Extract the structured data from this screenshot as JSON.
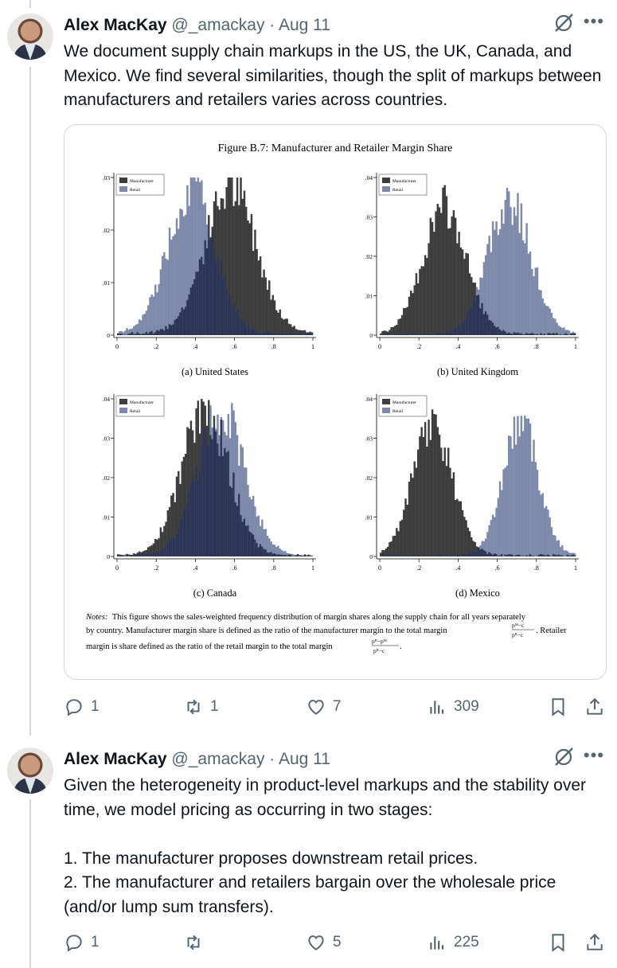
{
  "tweets": [
    {
      "name": "Alex MacKay",
      "handle": "@_amackay",
      "sep": "·",
      "date": "Aug 11",
      "text": "We document supply chain markups in the US, the UK, Canada, and Mexico. We find several similarities, though the split of markups between manufacturers and retailers varies across countries.",
      "replies": "1",
      "retweets": "1",
      "likes": "7",
      "views": "309"
    },
    {
      "name": "Alex MacKay",
      "handle": "@_amackay",
      "sep": "·",
      "date": "Aug 11",
      "text": "Given the heterogeneity in product-level markups and the stability over time, we model pricing as occurring in two stages:\n\n1. The manufacturer proposes downstream retail prices.\n2. The manufacturer and retailers bargain over the wholesale price (and/or lump sum transfers).",
      "replies": "1",
      "retweets": "",
      "likes": "5",
      "views": "225"
    }
  ],
  "icons": [
    "grok-icon",
    "more-icon",
    "reply-icon",
    "retweet-icon",
    "like-icon",
    "views-icon",
    "bookmark-icon",
    "share-icon"
  ],
  "colors": {
    "manufacturer": "#3d3d3d",
    "retail": "#7f8aab",
    "overlap": "#2c3453",
    "muted": "#536471"
  },
  "figure": {
    "title": "Figure B.7: Manufacturer and Retailer Margin Share",
    "notes_label": "Notes:",
    "notes_line1": "This figure shows the sales-weighted frequency distribution of margin shares along the supply chain for all years separately",
    "notes_line2a": "by country.  Manufacturer margin share is defined as the ratio of the manufacturer margin to the total margin",
    "notes_frac1_num": "pᴹ−c",
    "notes_frac1_den": "pᴿ−c",
    "notes_line2b": ".  Retailer",
    "notes_line3a": "margin is share defined as the ratio of the retail margin to the total margin",
    "notes_frac2_num": "pᴿ−pᴹ",
    "notes_frac2_den": "pᴿ−c",
    "notes_line3b": "."
  },
  "chart_data": [
    {
      "type": "bar",
      "title": "(a) United States",
      "legend": [
        "Manufacturer",
        "Retail"
      ],
      "legend_position": "top-left",
      "xlim": [
        0,
        1
      ],
      "ylim": [
        0,
        0.03
      ],
      "xticks": [
        "0",
        ".2",
        ".4",
        ".6",
        ".8",
        "1"
      ],
      "yticks": [
        "0",
        ".01",
        ".02",
        ".03"
      ],
      "series": [
        {
          "name": "Manufacturer",
          "distribution": "approx. normal",
          "peak_x": 0.58,
          "peak_y": 0.028,
          "sd": 0.13
        },
        {
          "name": "Retail",
          "distribution": "approx. normal",
          "peak_x": 0.38,
          "peak_y": 0.028,
          "sd": 0.12
        }
      ]
    },
    {
      "type": "bar",
      "title": "(b) United Kingdom",
      "legend": [
        "Manufacturer",
        "Retail"
      ],
      "legend_position": "top-left",
      "xlim": [
        0,
        1
      ],
      "ylim": [
        0,
        0.04
      ],
      "xticks": [
        "0",
        ".2",
        ".4",
        ".6",
        ".8",
        "1"
      ],
      "yticks": [
        "0",
        ".01",
        ".02",
        ".03",
        ".04"
      ],
      "series": [
        {
          "name": "Manufacturer",
          "distribution": "approx. normal",
          "peak_x": 0.33,
          "peak_y": 0.032,
          "sd": 0.11
        },
        {
          "name": "Retail",
          "distribution": "approx. normal",
          "peak_x": 0.66,
          "peak_y": 0.034,
          "sd": 0.11
        }
      ]
    },
    {
      "type": "bar",
      "title": "(c) Canada",
      "legend": [
        "Manufacturer",
        "Retail"
      ],
      "legend_position": "top-left",
      "xlim": [
        0,
        1
      ],
      "ylim": [
        0,
        0.04
      ],
      "xticks": [
        "0",
        ".2",
        ".4",
        ".6",
        ".8",
        "1"
      ],
      "yticks": [
        "0",
        ".01",
        ".02",
        ".03",
        ".04"
      ],
      "series": [
        {
          "name": "Manufacturer",
          "distribution": "approx. normal",
          "peak_x": 0.45,
          "peak_y": 0.037,
          "sd": 0.12
        },
        {
          "name": "Retail",
          "distribution": "approx. normal",
          "peak_x": 0.53,
          "peak_y": 0.037,
          "sd": 0.12
        }
      ]
    },
    {
      "type": "bar",
      "title": "(d) Mexico",
      "legend": [
        "Manufacturer",
        "Retail"
      ],
      "legend_position": "top-left",
      "xlim": [
        0,
        1
      ],
      "ylim": [
        0,
        0.04
      ],
      "xticks": [
        "0",
        ".2",
        ".4",
        ".6",
        ".8",
        "1"
      ],
      "yticks": [
        "0",
        ".01",
        ".02",
        ".03",
        ".04"
      ],
      "series": [
        {
          "name": "Manufacturer",
          "distribution": "approx. normal",
          "peak_x": 0.27,
          "peak_y": 0.033,
          "sd": 0.1
        },
        {
          "name": "Retail",
          "distribution": "approx. normal",
          "peak_x": 0.72,
          "peak_y": 0.034,
          "sd": 0.09
        }
      ]
    }
  ]
}
